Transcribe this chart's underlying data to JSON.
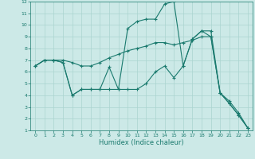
{
  "xlabel": "Humidex (Indice chaleur)",
  "bg_color": "#cce9e7",
  "line_color": "#1a7a6e",
  "grid_color": "#aad4d0",
  "xlim": [
    -0.5,
    23.5
  ],
  "ylim": [
    1,
    12
  ],
  "xticks": [
    0,
    1,
    2,
    3,
    4,
    5,
    6,
    7,
    8,
    9,
    10,
    11,
    12,
    13,
    14,
    15,
    16,
    17,
    18,
    19,
    20,
    21,
    22,
    23
  ],
  "yticks": [
    1,
    2,
    3,
    4,
    5,
    6,
    7,
    8,
    9,
    10,
    11,
    12
  ],
  "line1_x": [
    0,
    1,
    2,
    3,
    4,
    5,
    6,
    7,
    8,
    9,
    10,
    11,
    12,
    13,
    14,
    15,
    16,
    17,
    18,
    19,
    20,
    21,
    22,
    23
  ],
  "line1_y": [
    6.5,
    7.0,
    7.0,
    7.0,
    6.8,
    6.5,
    6.5,
    6.8,
    7.2,
    7.5,
    7.8,
    8.0,
    8.2,
    8.5,
    8.5,
    8.3,
    8.5,
    8.7,
    9.0,
    9.0,
    4.2,
    3.5,
    2.5,
    1.2
  ],
  "line2_x": [
    0,
    1,
    2,
    3,
    4,
    5,
    6,
    7,
    8,
    9,
    10,
    11,
    12,
    13,
    14,
    15,
    16,
    17,
    18,
    19,
    20,
    21,
    22,
    23
  ],
  "line2_y": [
    6.5,
    7.0,
    7.0,
    6.8,
    4.0,
    4.5,
    4.5,
    4.5,
    4.5,
    4.5,
    9.7,
    10.3,
    10.5,
    10.5,
    11.8,
    12.0,
    6.5,
    8.8,
    9.5,
    9.0,
    4.2,
    3.3,
    2.3,
    1.2
  ],
  "line3_x": [
    0,
    1,
    2,
    3,
    4,
    5,
    6,
    7,
    8,
    9,
    10,
    11,
    12,
    13,
    14,
    15,
    16,
    17,
    18,
    19,
    20,
    21,
    22,
    23
  ],
  "line3_y": [
    6.5,
    7.0,
    7.0,
    6.8,
    4.0,
    4.5,
    4.5,
    4.5,
    6.4,
    4.5,
    4.5,
    4.5,
    5.0,
    6.0,
    6.5,
    5.5,
    6.5,
    8.8,
    9.5,
    9.5,
    4.2,
    3.3,
    2.3,
    1.2
  ]
}
